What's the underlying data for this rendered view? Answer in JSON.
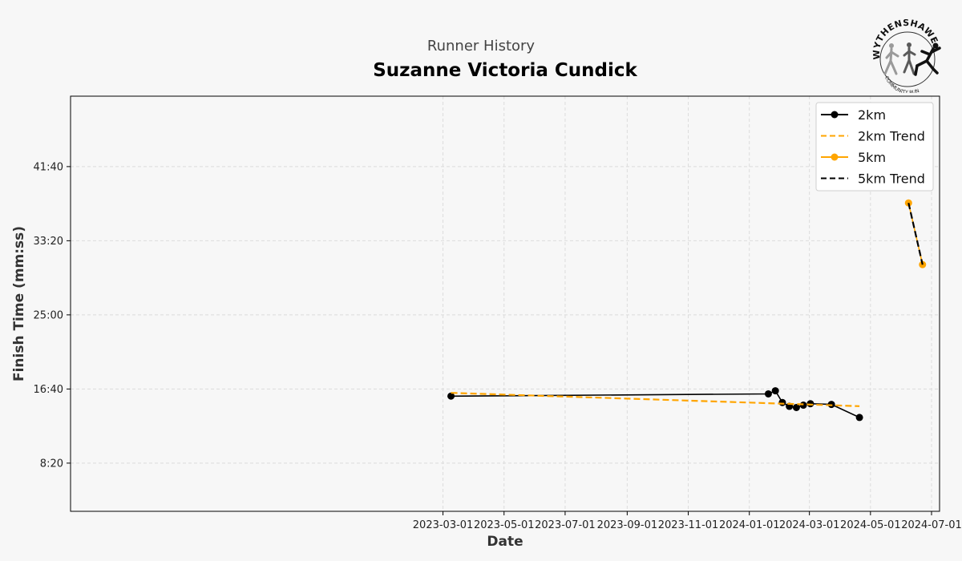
{
  "page": {
    "background": "#f7f7f7"
  },
  "chart_data": {
    "type": "line",
    "subtitle": "Runner History",
    "title": "Suzanne Victoria Cundick",
    "xlabel": "Date",
    "ylabel": "Finish Time (mm:ss)",
    "x_type": "date",
    "xlim": [
      "2022-02-22",
      "2024-07-09"
    ],
    "x_ticks": [
      "2023-03-01",
      "2023-05-01",
      "2023-07-01",
      "2023-09-01",
      "2023-11-01",
      "2024-01-01",
      "2024-03-01",
      "2024-05-01",
      "2024-07-01"
    ],
    "ylim": [
      "02:55",
      "49:35"
    ],
    "y_ticks": [
      "8:20",
      "16:40",
      "25:00",
      "33:20",
      "41:40"
    ],
    "grid": true,
    "legend_position": "top-right",
    "series": [
      {
        "name": "2km",
        "color": "#000000",
        "style": "solid",
        "marker": "circle",
        "points": [
          {
            "x": "2023-03-09",
            "y": "15:52"
          },
          {
            "x": "2024-01-20",
            "y": "16:07"
          },
          {
            "x": "2024-01-27",
            "y": "16:28"
          },
          {
            "x": "2024-02-03",
            "y": "15:09"
          },
          {
            "x": "2024-02-10",
            "y": "14:43"
          },
          {
            "x": "2024-02-17",
            "y": "14:35"
          },
          {
            "x": "2024-02-24",
            "y": "14:51"
          },
          {
            "x": "2024-03-02",
            "y": "15:01"
          },
          {
            "x": "2024-03-23",
            "y": "14:56"
          },
          {
            "x": "2024-04-20",
            "y": "13:28"
          }
        ]
      },
      {
        "name": "2km Trend",
        "color": "#ffa500",
        "style": "dashed",
        "marker": "none",
        "points": [
          {
            "x": "2023-03-09",
            "y": "16:14"
          },
          {
            "x": "2024-04-20",
            "y": "14:44"
          }
        ]
      },
      {
        "name": "5km",
        "color": "#ffa500",
        "style": "solid",
        "marker": "circle",
        "points": [
          {
            "x": "2024-06-08",
            "y": "37:35"
          },
          {
            "x": "2024-06-22",
            "y": "30:39"
          }
        ]
      },
      {
        "name": "5km Trend",
        "color": "#000000",
        "style": "dashed",
        "marker": "none",
        "points": [
          {
            "x": "2024-06-08",
            "y": "37:35"
          },
          {
            "x": "2024-06-22",
            "y": "30:39"
          }
        ]
      }
    ]
  },
  "logo": {
    "arc_top_text": "WYTHENSHAWE",
    "arc_bottom_text": "COMMUNITY RUN",
    "colors": [
      "#9a9a9a",
      "#5a5a5a",
      "#111111"
    ]
  }
}
